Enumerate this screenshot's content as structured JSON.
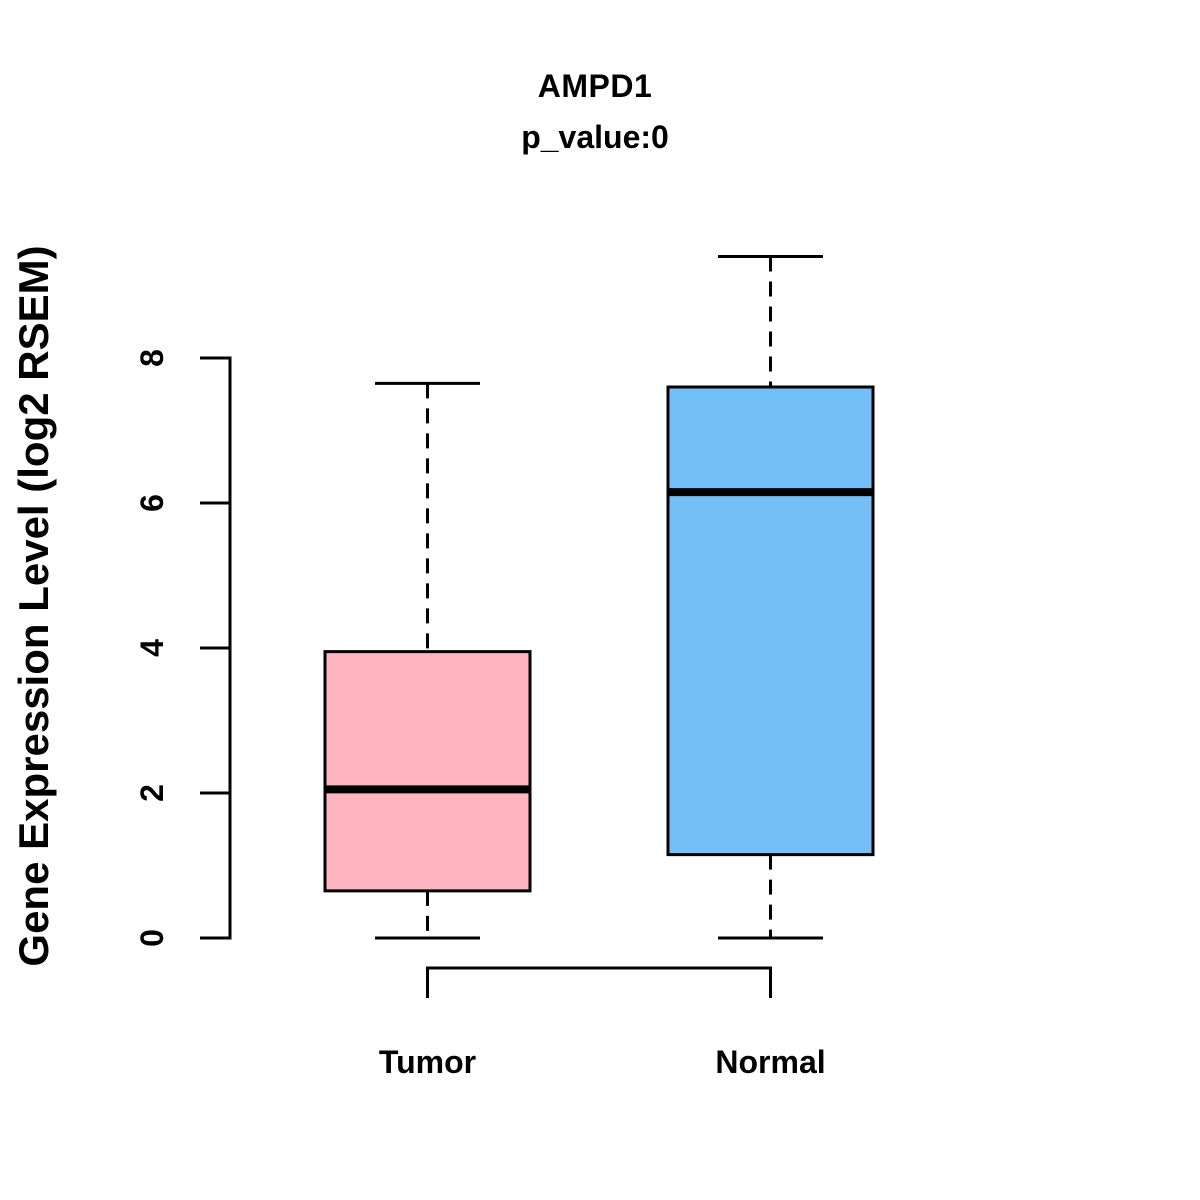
{
  "chart_data": {
    "type": "boxplot",
    "title": "AMPD1",
    "subtitle": "p_value:0",
    "ylabel": "Gene Expression Level (log2 RSEM)",
    "xlabel": "",
    "yticks": [
      "0",
      "2",
      "4",
      "6",
      "8"
    ],
    "ylim": [
      0,
      9.4
    ],
    "grid": false,
    "legend": "none",
    "whisker_line_style": "dashed",
    "colors": {
      "tumor_fill": "#FFB6C1",
      "normal_fill": "#74BFF7",
      "stroke": "#000000",
      "background": "#FFFFFF"
    },
    "groups": [
      {
        "label": "Tumor",
        "fill": "#FFB6C1",
        "stats": {
          "min": 0,
          "q1": 0.65,
          "median": 2.05,
          "q3": 3.95,
          "max": 7.65
        }
      },
      {
        "label": "Normal",
        "fill": "#74BFF7",
        "stats": {
          "min": 0,
          "q1": 1.15,
          "median": 6.15,
          "q3": 7.6,
          "max": 9.4
        }
      }
    ],
    "significance_bracket": {
      "from": "Tumor",
      "to": "Normal",
      "side": "bottom"
    }
  }
}
